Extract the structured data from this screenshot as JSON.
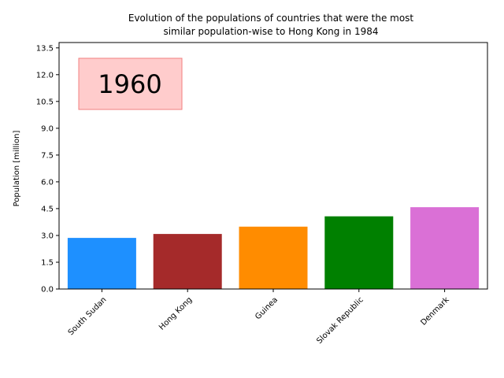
{
  "chart_data": {
    "type": "bar",
    "title_line1": "Evolution of the populations of countries that were the most",
    "title_line2": "similar population-wise to Hong Kong in 1984",
    "ylabel": "Population [million]",
    "xlabel": "",
    "year_label": "1960",
    "categories": [
      "South Sudan",
      "Hong Kong",
      "Guinea",
      "Slovak Republic",
      "Denmark"
    ],
    "values": [
      2.86,
      3.08,
      3.49,
      4.07,
      4.58
    ],
    "colors": [
      "#1e90ff",
      "#a52a2a",
      "#ff8c00",
      "#008000",
      "#da70d6"
    ],
    "ylim": [
      0,
      13.8
    ],
    "yticks": [
      0.0,
      1.5,
      3.0,
      4.5,
      6.0,
      7.5,
      9.0,
      10.5,
      12.0,
      13.5
    ],
    "ytick_labels": [
      "0.0",
      "1.5",
      "3.0",
      "4.5",
      "6.0",
      "7.5",
      "9.0",
      "10.5",
      "12.0",
      "13.5"
    ],
    "year_box_color": "#ffcccc",
    "year_box_border": "#f08080",
    "grid": false,
    "legend": "none"
  }
}
